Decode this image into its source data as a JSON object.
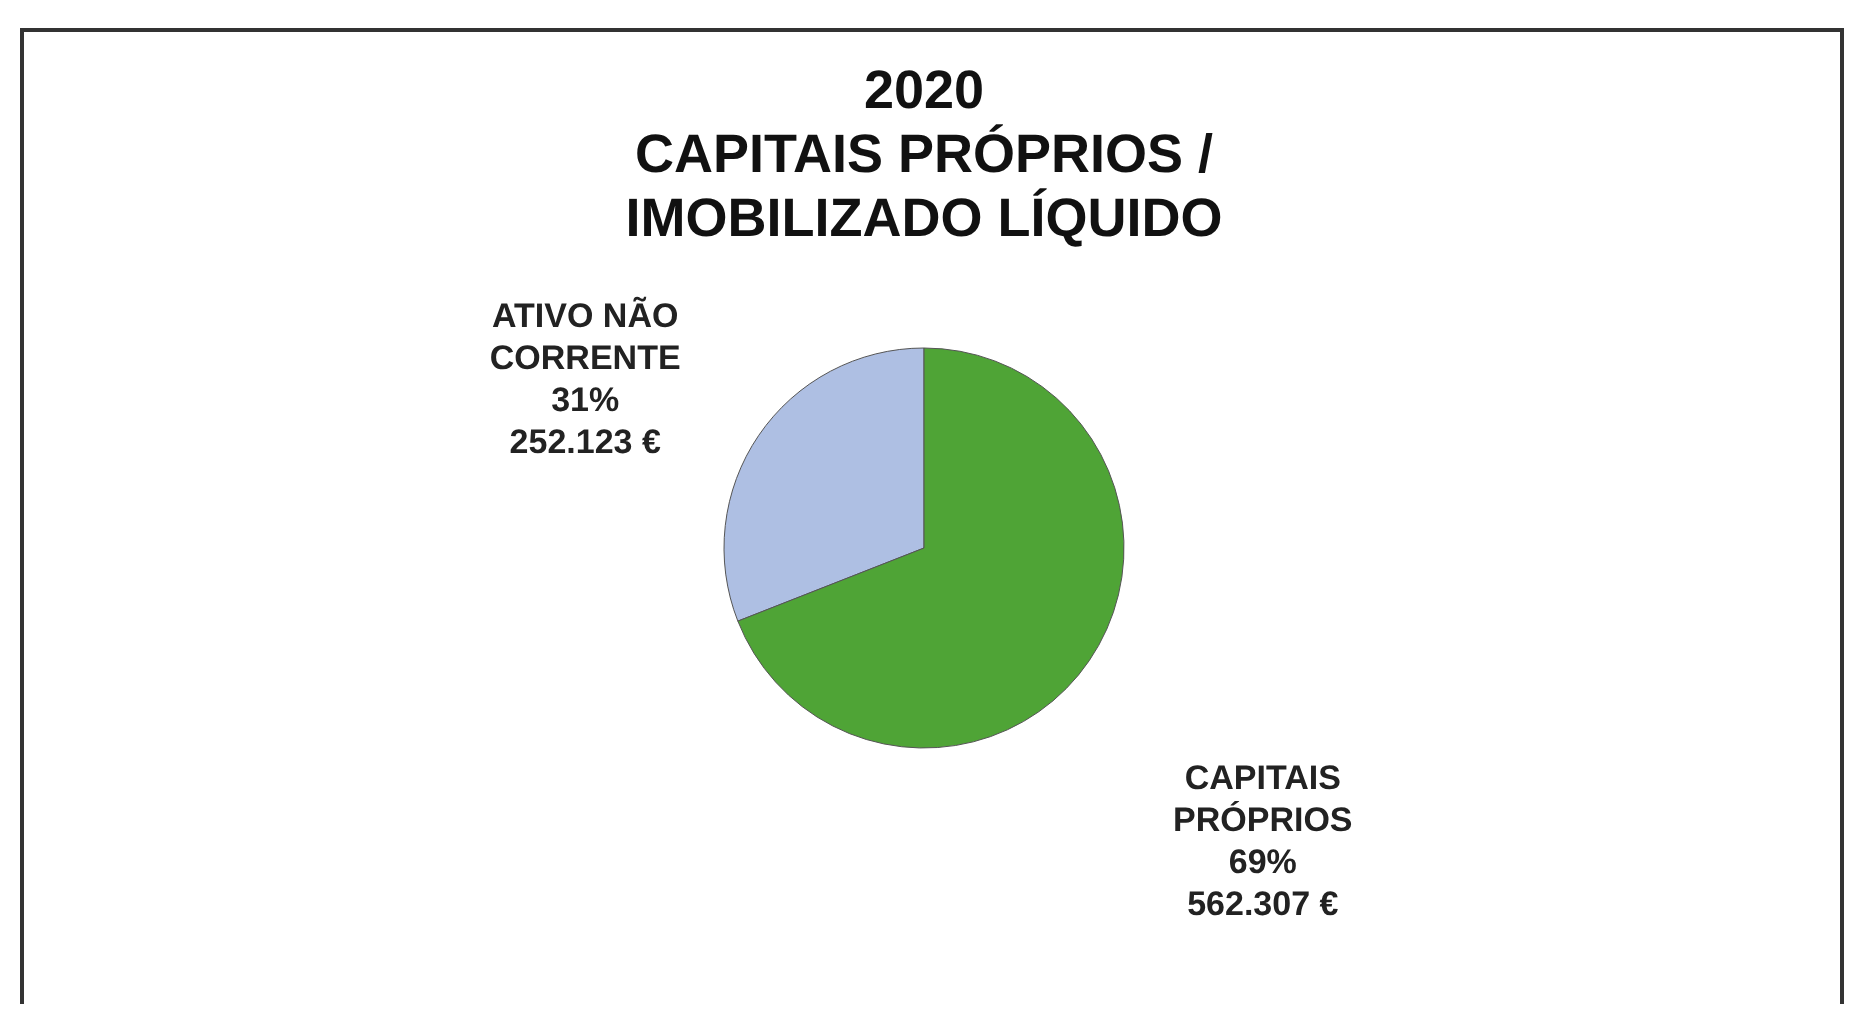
{
  "chart_data": {
    "type": "pie",
    "title": "2020\nCAPITAIS PRÓPRIOS /\nIMOBILIZADO LÍQUIDO",
    "categories": [
      "ATIVO NÃO CORRENTE",
      "CAPITAIS PRÓPRIOS"
    ],
    "values": [
      252123,
      562307
    ],
    "value_labels": [
      "31%\n252.123 €",
      "69%\n562.307 €"
    ],
    "colors": [
      "#aebfe3",
      "#4fa436"
    ]
  }
}
